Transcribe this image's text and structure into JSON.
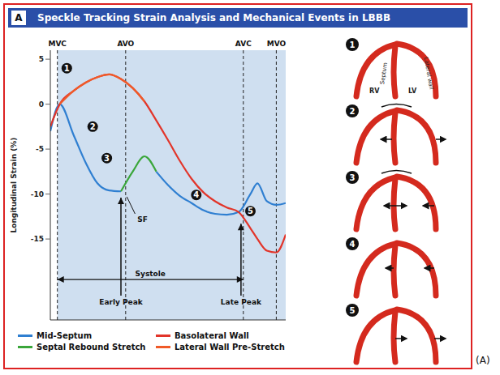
{
  "header": {
    "letter": "A",
    "title": "Speckle Tracking Strain Analysis and Mechanical Events in LBBB"
  },
  "caption": "(A)",
  "chart_data": {
    "type": "line",
    "y_label": "Longitudinal Strain (%)",
    "x": [
      0,
      4,
      10,
      15,
      20,
      25,
      30,
      35,
      40,
      45,
      50,
      55,
      60,
      65,
      70,
      75,
      80,
      85,
      88,
      92,
      96,
      100
    ],
    "xlim": [
      0,
      100
    ],
    "ylim": [
      -24,
      6
    ],
    "yticks": [
      -15,
      -10,
      -5,
      0,
      5
    ],
    "tick_labels": "y",
    "grid": false,
    "legend": "bottom",
    "series": [
      {
        "name": "Mid-Septum",
        "color": "#2f7fd1",
        "values": [
          -3,
          0,
          -3.5,
          -6.5,
          -8.8,
          -9.6,
          -9.7,
          null,
          null,
          -7.5,
          -9,
          -10.2,
          -11,
          -11.8,
          -12.2,
          -12.3,
          -12,
          -10,
          -8.8,
          -10.8,
          -11.2,
          -11
        ]
      },
      {
        "name": "Basolateral Wall",
        "color": "#e2352a",
        "values": [
          -2.5,
          0,
          1.5,
          2.4,
          3,
          3.3,
          2.8,
          1.8,
          0.3,
          -1.8,
          -4,
          -6.3,
          -8.3,
          -9.8,
          -10.8,
          -11.5,
          -12,
          -13.8,
          -15,
          -16.3,
          -16.5,
          -14.5
        ]
      },
      {
        "name": "Septal Rebound Stretch",
        "color": "#3aa63a",
        "values": [
          null,
          null,
          null,
          null,
          null,
          null,
          -9.7,
          -7.5,
          -5.8,
          -7.5,
          null,
          null,
          null,
          null,
          null,
          null,
          null,
          null,
          null,
          null,
          null,
          null
        ]
      },
      {
        "name": "Lateral Wall Pre-Stretch",
        "color": "#f05a28",
        "values": [
          null,
          0,
          1.5,
          2.4,
          3,
          3.3,
          2.8,
          1.8,
          0.3,
          null,
          null,
          null,
          null,
          null,
          null,
          null,
          null,
          null,
          null,
          null,
          null,
          null
        ]
      }
    ],
    "events": [
      {
        "label": "MVC",
        "x": 3
      },
      {
        "label": "AVO",
        "x": 32
      },
      {
        "label": "AVC",
        "x": 82
      },
      {
        "label": "MVO",
        "x": 96
      }
    ],
    "markers": [
      {
        "label": "1",
        "x": 7,
        "y": 4
      },
      {
        "label": "2",
        "x": 18,
        "y": -2.5
      },
      {
        "label": "3",
        "x": 24,
        "y": -6
      },
      {
        "label": "4",
        "x": 62,
        "y": -10.1
      },
      {
        "label": "5",
        "x": 85,
        "y": -11.9
      }
    ],
    "arrows": [
      {
        "text": "Early Peak",
        "x": 30,
        "y_from": -21.3,
        "y_to": -10.4
      },
      {
        "text": "Late Peak",
        "x": 81,
        "y_from": -21.3,
        "y_to": -13.3
      }
    ],
    "pointer": {
      "text": "SF",
      "x": 37,
      "y": -12.8,
      "to_x": 32.5,
      "to_y": -10.3
    },
    "span": {
      "text": "Systole",
      "x_from": 3,
      "x_to": 82,
      "y": -19.5
    }
  },
  "diagrams": [
    {
      "label": "1",
      "texts": {
        "rv": "RV",
        "lv": "LV",
        "septum": "Septum",
        "lateral": "Lateral wall"
      }
    },
    {
      "label": "2"
    },
    {
      "label": "3"
    },
    {
      "label": "4"
    },
    {
      "label": "5"
    }
  ]
}
